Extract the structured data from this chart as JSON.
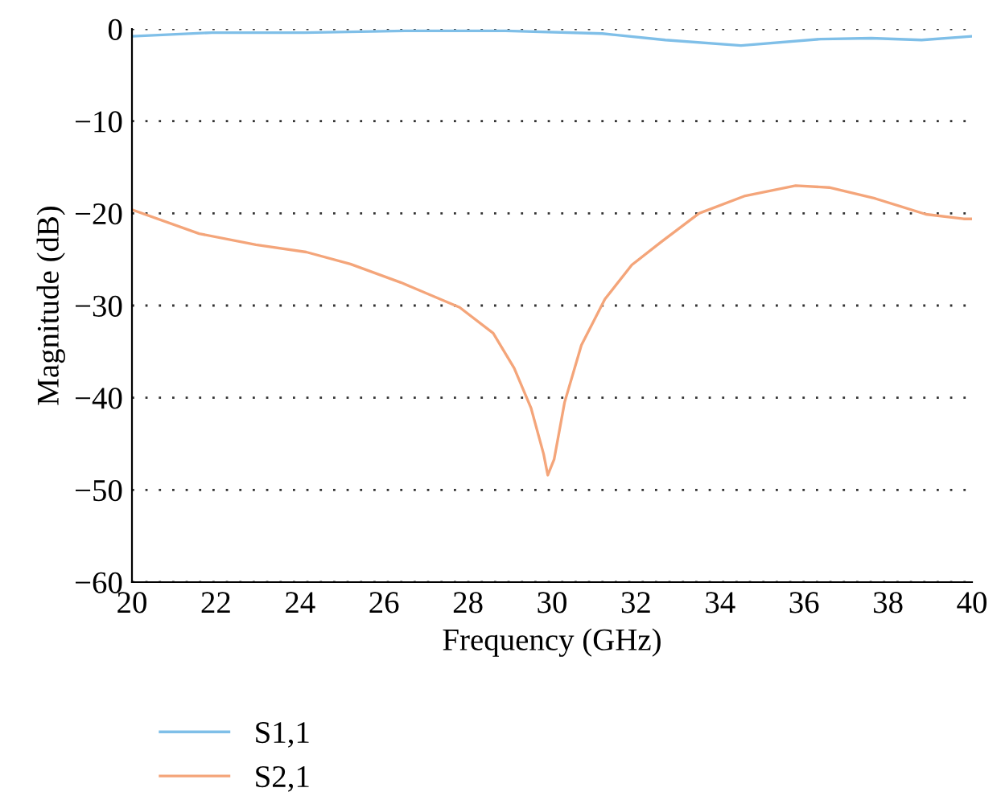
{
  "chart_data": {
    "type": "line",
    "xlabel": "Frequency (GHz)",
    "ylabel": "Magnitude (dB)",
    "xlim": [
      20,
      40
    ],
    "xticks": [
      20,
      22,
      24,
      26,
      28,
      30,
      32,
      34,
      36,
      38,
      40
    ],
    "ylim": [
      -60,
      0
    ],
    "yticks": [
      -60,
      -50,
      -40,
      -30,
      -20,
      -10,
      0
    ],
    "grid": "y",
    "legend": "bottom left",
    "marker": "none",
    "line_style": "solid",
    "series": [
      {
        "name": "S1,1",
        "color": "#7fbfe8",
        "x": [
          20,
          21.9,
          24.1,
          26.5,
          28.9,
          31.2,
          32.7,
          34.5,
          36.4,
          37.6,
          38.8,
          40
        ],
        "values": [
          -0.8,
          -0.4,
          -0.4,
          -0.2,
          -0.2,
          -0.5,
          -1.2,
          -1.8,
          -1.1,
          -1.0,
          -1.2,
          -0.8
        ]
      },
      {
        "name": "S2,1",
        "color": "#f4a57a",
        "x": [
          20,
          21.6,
          22.95,
          24.15,
          25.2,
          26.4,
          27.8,
          28.6,
          29.1,
          29.5,
          29.8,
          29.9,
          30.05,
          30.3,
          30.7,
          31.26,
          31.9,
          32.6,
          33.5,
          34.6,
          35.8,
          36.6,
          37.7,
          38.9,
          39.8,
          40
        ],
        "values": [
          -19.6,
          -22.2,
          -23.4,
          -24.2,
          -25.5,
          -27.5,
          -30.2,
          -33,
          -36.8,
          -41.1,
          -46.1,
          -48.4,
          -46.7,
          -40.5,
          -34.3,
          -29.3,
          -25.6,
          -23.1,
          -20,
          -18.1,
          -17,
          -17.2,
          -18.4,
          -20.1,
          -20.6,
          -20.6
        ]
      }
    ]
  }
}
